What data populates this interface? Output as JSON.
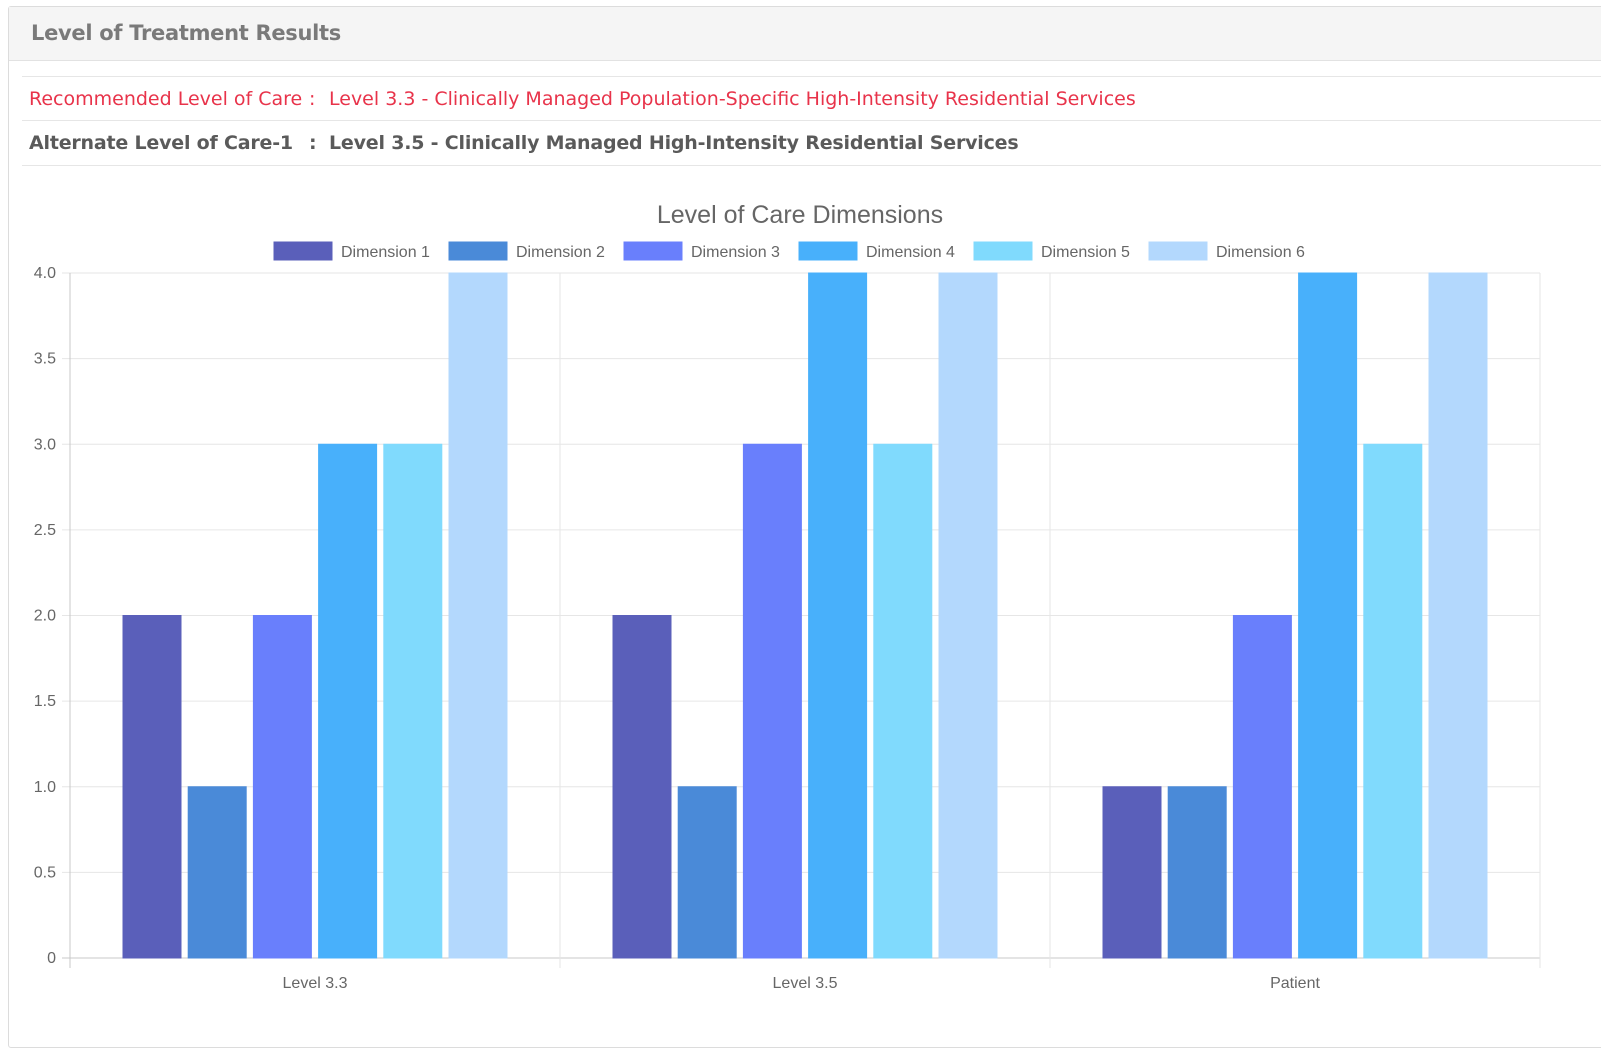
{
  "panel": {
    "title": "Level of Treatment Results"
  },
  "recommended": {
    "label": "Recommended Level of Care",
    "separator": ":",
    "value": "Level 3.3 - Clinically Managed Population-Specific High-Intensity Residential Services"
  },
  "alternate": {
    "label": "Alternate Level of Care-1",
    "separator": ":",
    "value": "Level 3.5 - Clinically Managed High-Intensity Residential Services"
  },
  "chart_data": {
    "type": "bar",
    "title": "Level of Care Dimensions",
    "xlabel": "",
    "ylabel": "",
    "ylim": [
      0,
      4.0
    ],
    "yticks": [
      "0",
      "0.5",
      "1.0",
      "1.5",
      "2.0",
      "2.5",
      "3.0",
      "3.5",
      "4.0"
    ],
    "grid": true,
    "legend_position": "top",
    "categories": [
      "Level 3.3",
      "Level 3.5",
      "Patient"
    ],
    "series": [
      {
        "name": "Dimension 1",
        "color": "#5a5fba",
        "values": [
          2,
          2,
          1
        ]
      },
      {
        "name": "Dimension 2",
        "color": "#4a8ad8",
        "values": [
          1,
          1,
          1
        ]
      },
      {
        "name": "Dimension 3",
        "color": "#697ffc",
        "values": [
          2,
          3,
          2
        ]
      },
      {
        "name": "Dimension 4",
        "color": "#48b0fb",
        "values": [
          3,
          4,
          4
        ]
      },
      {
        "name": "Dimension 5",
        "color": "#80dafd",
        "values": [
          3,
          3,
          3
        ]
      },
      {
        "name": "Dimension 6",
        "color": "#b3d8fd",
        "values": [
          4,
          4,
          4
        ]
      }
    ]
  }
}
